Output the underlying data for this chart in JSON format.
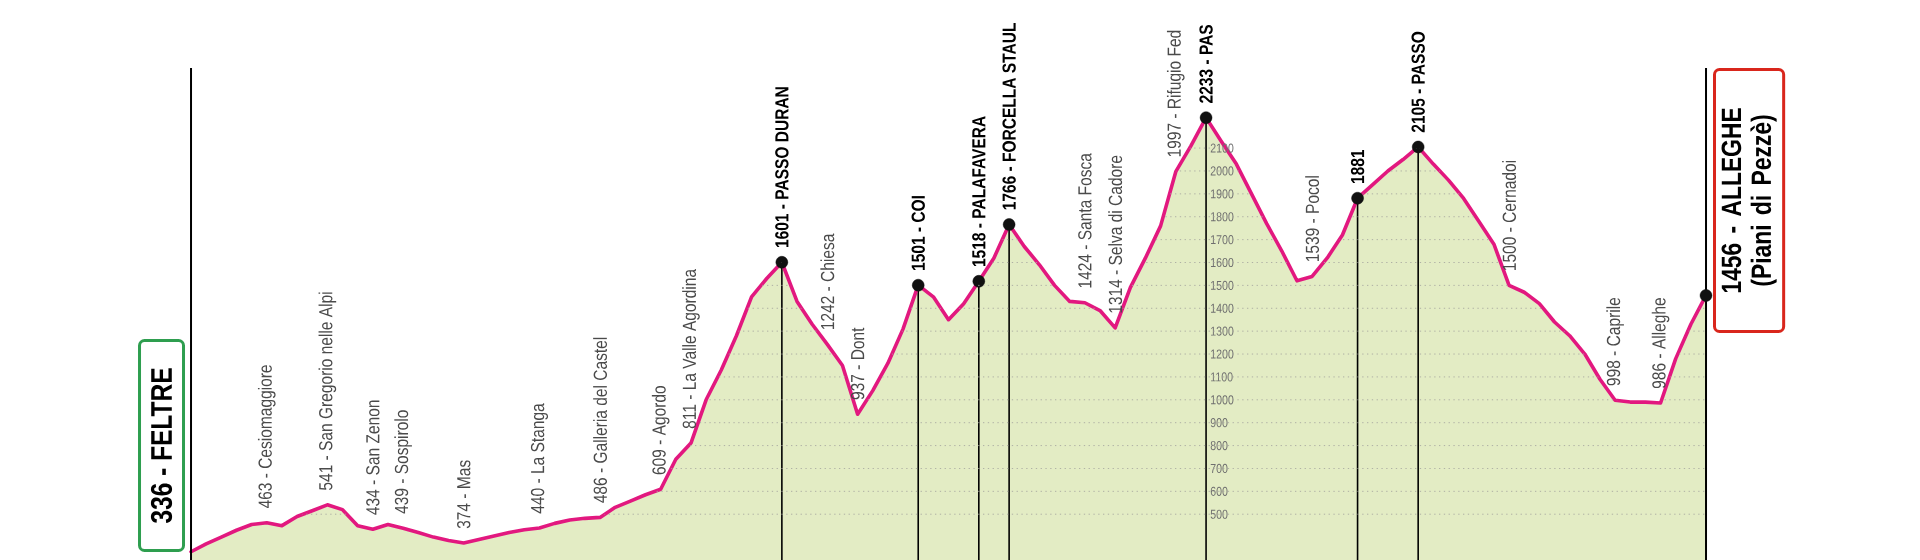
{
  "chart_data": {
    "type": "area",
    "categories": [
      null,
      null,
      null,
      null,
      null,
      "463 - Cesiomaggiore",
      null,
      null,
      null,
      "541 - San Gregorio nelle Alpi",
      null,
      null,
      "434 - San Zenon",
      null,
      "439 - Sospirolo",
      null,
      null,
      null,
      "374 - Mas",
      null,
      null,
      null,
      null,
      "440 - La Stanga",
      null,
      null,
      null,
      "486 - Galleria del Castel",
      null,
      null,
      null,
      "609 - Agordo",
      null,
      "811 - La Valle Agordina",
      null,
      null,
      null,
      null,
      null,
      "1601 - PASSO DURAN",
      null,
      null,
      "1242 - Chiesa",
      null,
      "937 - Dont",
      null,
      null,
      null,
      "1501 - COI",
      null,
      null,
      null,
      "1518 - PALAFAVERA",
      null,
      "1766 - FORCELLA STAUL",
      null,
      null,
      null,
      null,
      "1424 - Santa Fosca",
      null,
      "1314 - Selva di Cadore",
      null,
      null,
      null,
      "1997 - Rifugio Fed",
      null,
      "2233 - PAS",
      null,
      null,
      null,
      null,
      null,
      null,
      "1539 - Pocol",
      null,
      null,
      "1881",
      null,
      null,
      null,
      "2105 - PASSO",
      null,
      null,
      null,
      null,
      null,
      "1500 - Cernadoi",
      null,
      null,
      null,
      null,
      null,
      null,
      "998 - Caprile",
      null,
      null,
      "986 - Alleghe",
      null,
      null,
      null
    ],
    "series": [
      {
        "color": "#e2187f",
        "values": [
          336,
          370,
          400,
          430,
          455,
          463,
          450,
          490,
          515,
          541,
          520,
          450,
          434,
          455,
          439,
          420,
          400,
          385,
          374,
          390,
          405,
          420,
          432,
          440,
          460,
          475,
          482,
          486,
          530,
          557,
          585,
          609,
          740,
          811,
          1000,
          1130,
          1280,
          1450,
          1530,
          1601,
          1430,
          1330,
          1242,
          1150,
          937,
          1040,
          1160,
          1310,
          1501,
          1450,
          1350,
          1420,
          1518,
          1620,
          1766,
          1670,
          1590,
          1500,
          1430,
          1424,
          1390,
          1314,
          1490,
          1620,
          1760,
          1997,
          2110,
          2233,
          2130,
          2030,
          1900,
          1770,
          1650,
          1520,
          1539,
          1620,
          1720,
          1881,
          1940,
          2000,
          2050,
          2105,
          2030,
          1960,
          1880,
          1780,
          1680,
          1500,
          1470,
          1420,
          1340,
          1280,
          1200,
          1090,
          998,
          990,
          990,
          986,
          1180,
          1330,
          1456
        ]
      },
      {
        "type": "scatter",
        "marker": "circle",
        "color": "#111111",
        "values": [
          null,
          null,
          null,
          null,
          null,
          null,
          null,
          null,
          null,
          null,
          null,
          null,
          null,
          null,
          null,
          null,
          null,
          null,
          null,
          null,
          null,
          null,
          null,
          null,
          null,
          null,
          null,
          null,
          null,
          null,
          null,
          null,
          null,
          null,
          null,
          null,
          null,
          null,
          null,
          1601,
          null,
          null,
          null,
          null,
          null,
          null,
          null,
          null,
          1501,
          null,
          null,
          null,
          1518,
          null,
          1766,
          null,
          null,
          null,
          null,
          null,
          null,
          null,
          null,
          null,
          null,
          null,
          null,
          2233,
          null,
          null,
          null,
          null,
          null,
          null,
          null,
          null,
          null,
          1881,
          null,
          null,
          null,
          2105,
          null,
          null,
          null,
          null,
          null,
          null,
          null,
          null,
          null,
          null,
          null,
          null,
          null,
          null,
          null,
          null,
          null,
          null,
          1456
        ]
      }
    ],
    "annotations": [
      "336 - FELTRE",
      "1456 - ALLEGHE (Piani di Pezzè)"
    ],
    "ylim": [
      300,
      2450
    ],
    "yticks": [
      500,
      600,
      700,
      800,
      900,
      1000,
      1100,
      1200,
      1300,
      1400,
      1500,
      1600,
      1700,
      1800,
      1900,
      2000,
      2100
    ],
    "grid": "y"
  }
}
